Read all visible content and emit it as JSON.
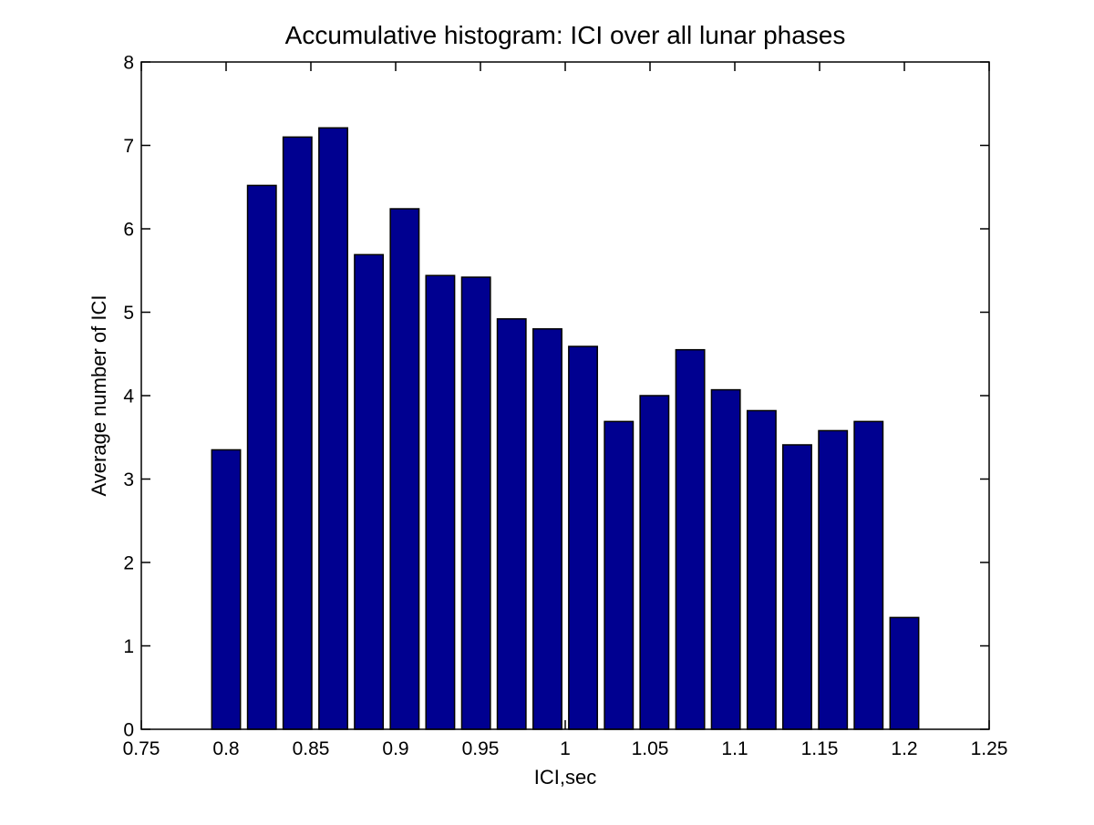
{
  "chart_data": {
    "type": "bar",
    "title": "Accumulative histogram: ICI over all lunar phases",
    "xlabel": "ICI,sec",
    "ylabel": "Average number of ICI",
    "x": [
      0.8,
      0.8211,
      0.8421,
      0.8632,
      0.8842,
      0.9053,
      0.9263,
      0.9474,
      0.9684,
      0.9895,
      1.0105,
      1.0316,
      1.0526,
      1.0737,
      1.0947,
      1.1158,
      1.1368,
      1.1579,
      1.1789,
      1.2
    ],
    "values": [
      3.35,
      6.52,
      7.1,
      7.21,
      5.69,
      6.24,
      5.44,
      5.42,
      4.92,
      4.8,
      4.59,
      3.69,
      4.0,
      4.55,
      4.07,
      3.82,
      3.41,
      3.58,
      3.69,
      1.34
    ],
    "xlim": [
      0.75,
      1.25
    ],
    "ylim": [
      0,
      8
    ],
    "xticks": [
      0.75,
      0.8,
      0.85,
      0.9,
      0.95,
      1,
      1.05,
      1.1,
      1.15,
      1.2,
      1.25
    ],
    "xtick_labels": [
      "0.75",
      "0.8",
      "0.85",
      "0.9",
      "0.95",
      "1",
      "1.05",
      "1.1",
      "1.15",
      "1.2",
      "1.25"
    ],
    "yticks": [
      0,
      1,
      2,
      3,
      4,
      5,
      6,
      7,
      8
    ],
    "ytick_labels": [
      "0",
      "1",
      "2",
      "3",
      "4",
      "5",
      "6",
      "7",
      "8"
    ],
    "bar_color": "#000090",
    "bar_edge_color": "#000000",
    "axis_color": "#000000",
    "background_color": "#ffffff",
    "bar_width_ratio": 0.8,
    "grid": false,
    "legend": null
  }
}
